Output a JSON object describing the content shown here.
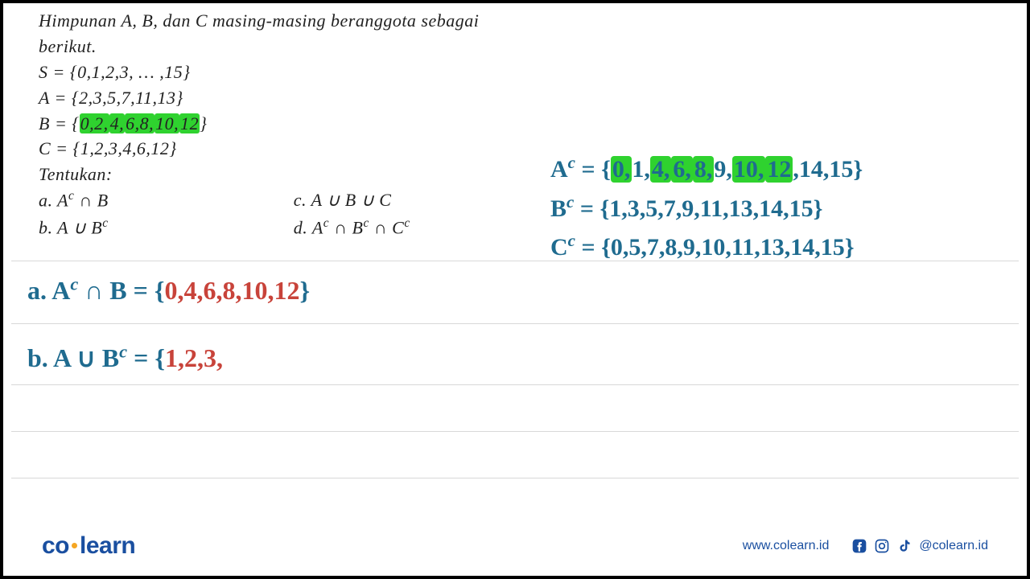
{
  "problem": {
    "intro_l1": "Himpunan  A,  B,  dan  C  masing-masing  beranggota  sebagai",
    "intro_l2": "berikut.",
    "S": "S = {0,1,2,3, … ,15}",
    "A": "A = {2,3,5,7,11,13}",
    "B_prefix": "B = {",
    "B_parts": [
      "0,2,",
      "4,",
      "6,8,",
      "10,",
      "12",
      "}"
    ],
    "B_highlight_idx": [
      0,
      1,
      2,
      3,
      4
    ],
    "C": "C = {1,2,3,4,6,12}",
    "tentukan": "Tentukan:",
    "qa": "a. Aᶜ ∩ B",
    "qb": "b. A ∪ Bᶜ",
    "qc": "c.  A ∪ B ∪ C",
    "qd": "d.  Aᶜ ∩ Bᶜ ∩ Cᶜ"
  },
  "complements": {
    "Ac_label": "Aᶜ = {",
    "Ac_parts": [
      "0,",
      "1,",
      "4,",
      "6,",
      "8,",
      "9,",
      "10,",
      "12",
      ",14,15}"
    ],
    "Ac_hl": [
      0,
      2,
      3,
      4,
      6,
      7
    ],
    "Bc": "Bᶜ = {1,3,5,7,9,11,13,14,15}",
    "Cc": "Cᶜ = {0,5,7,8,9,10,11,13,14,15}",
    "color": "#1f6b8f",
    "highlight_color": "#2fd22f"
  },
  "work": {
    "a_label": "a.  Aᶜ ∩ B = {",
    "a_values": "0,4,6,8,10,12",
    "a_close": "}",
    "b_label": "b.  A ∪ Bᶜ  = {",
    "b_values": "1,2,3,",
    "value_color": "#c8433a"
  },
  "rules_y": [
    320,
    398,
    474,
    532,
    590
  ],
  "footer": {
    "brand_left": "co",
    "brand_right": "learn",
    "url": "www.colearn.id",
    "handle": "@colearn.id",
    "brand_color": "#1a4fa0",
    "dot_color": "#f5a623"
  }
}
